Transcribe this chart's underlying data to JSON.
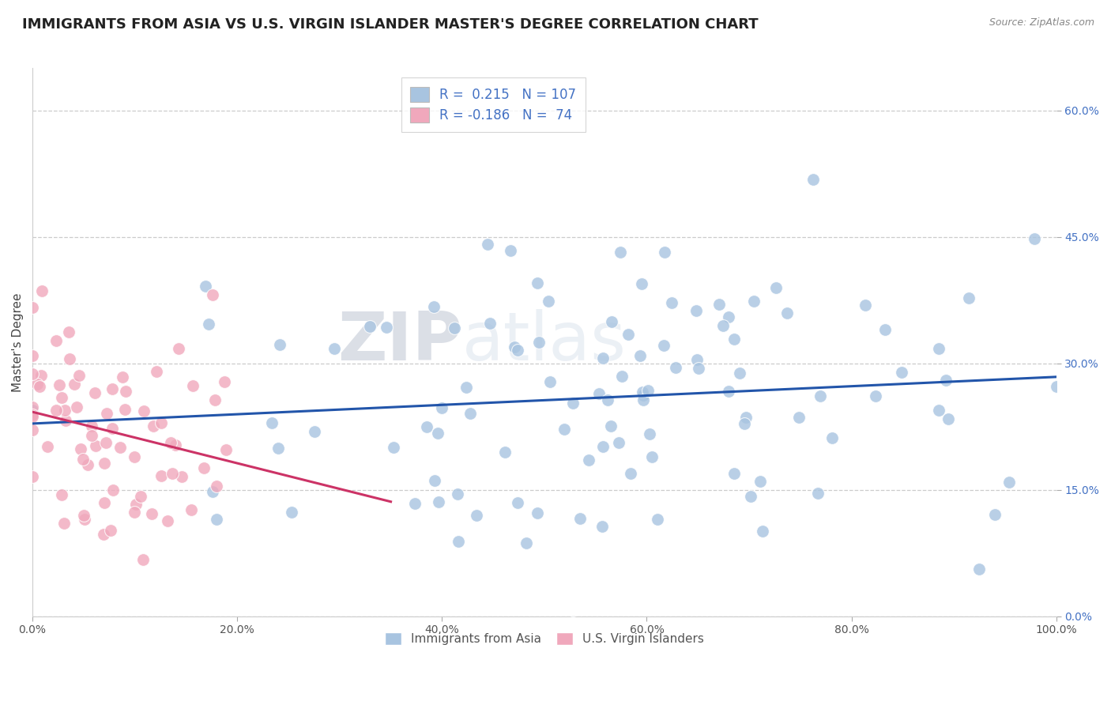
{
  "title": "IMMIGRANTS FROM ASIA VS U.S. VIRGIN ISLANDER MASTER'S DEGREE CORRELATION CHART",
  "source": "Source: ZipAtlas.com",
  "ylabel_label": "Master's Degree",
  "legend_entries": [
    {
      "label": "Immigrants from Asia",
      "color": "#a8c4e0"
    },
    {
      "label": "U.S. Virgin Islanders",
      "color": "#f0a8bc"
    }
  ],
  "R_blue": 0.215,
  "N_blue": 107,
  "R_pink": -0.186,
  "N_pink": 74,
  "blue_color": "#a8c4e0",
  "pink_color": "#f0a8bc",
  "blue_line_color": "#2255aa",
  "pink_line_color": "#cc3366",
  "background_color": "#ffffff",
  "grid_color": "#cccccc",
  "watermark_zip": "ZIP",
  "watermark_atlas": "atlas",
  "title_fontsize": 13,
  "axis_label_fontsize": 11,
  "tick_fontsize": 10,
  "x_ticks": [
    0.0,
    0.2,
    0.4,
    0.6,
    0.8,
    1.0
  ],
  "y_ticks": [
    0.0,
    0.15,
    0.3,
    0.45,
    0.6
  ],
  "xlim": [
    0.0,
    1.0
  ],
  "ylim": [
    0.0,
    0.65
  ]
}
